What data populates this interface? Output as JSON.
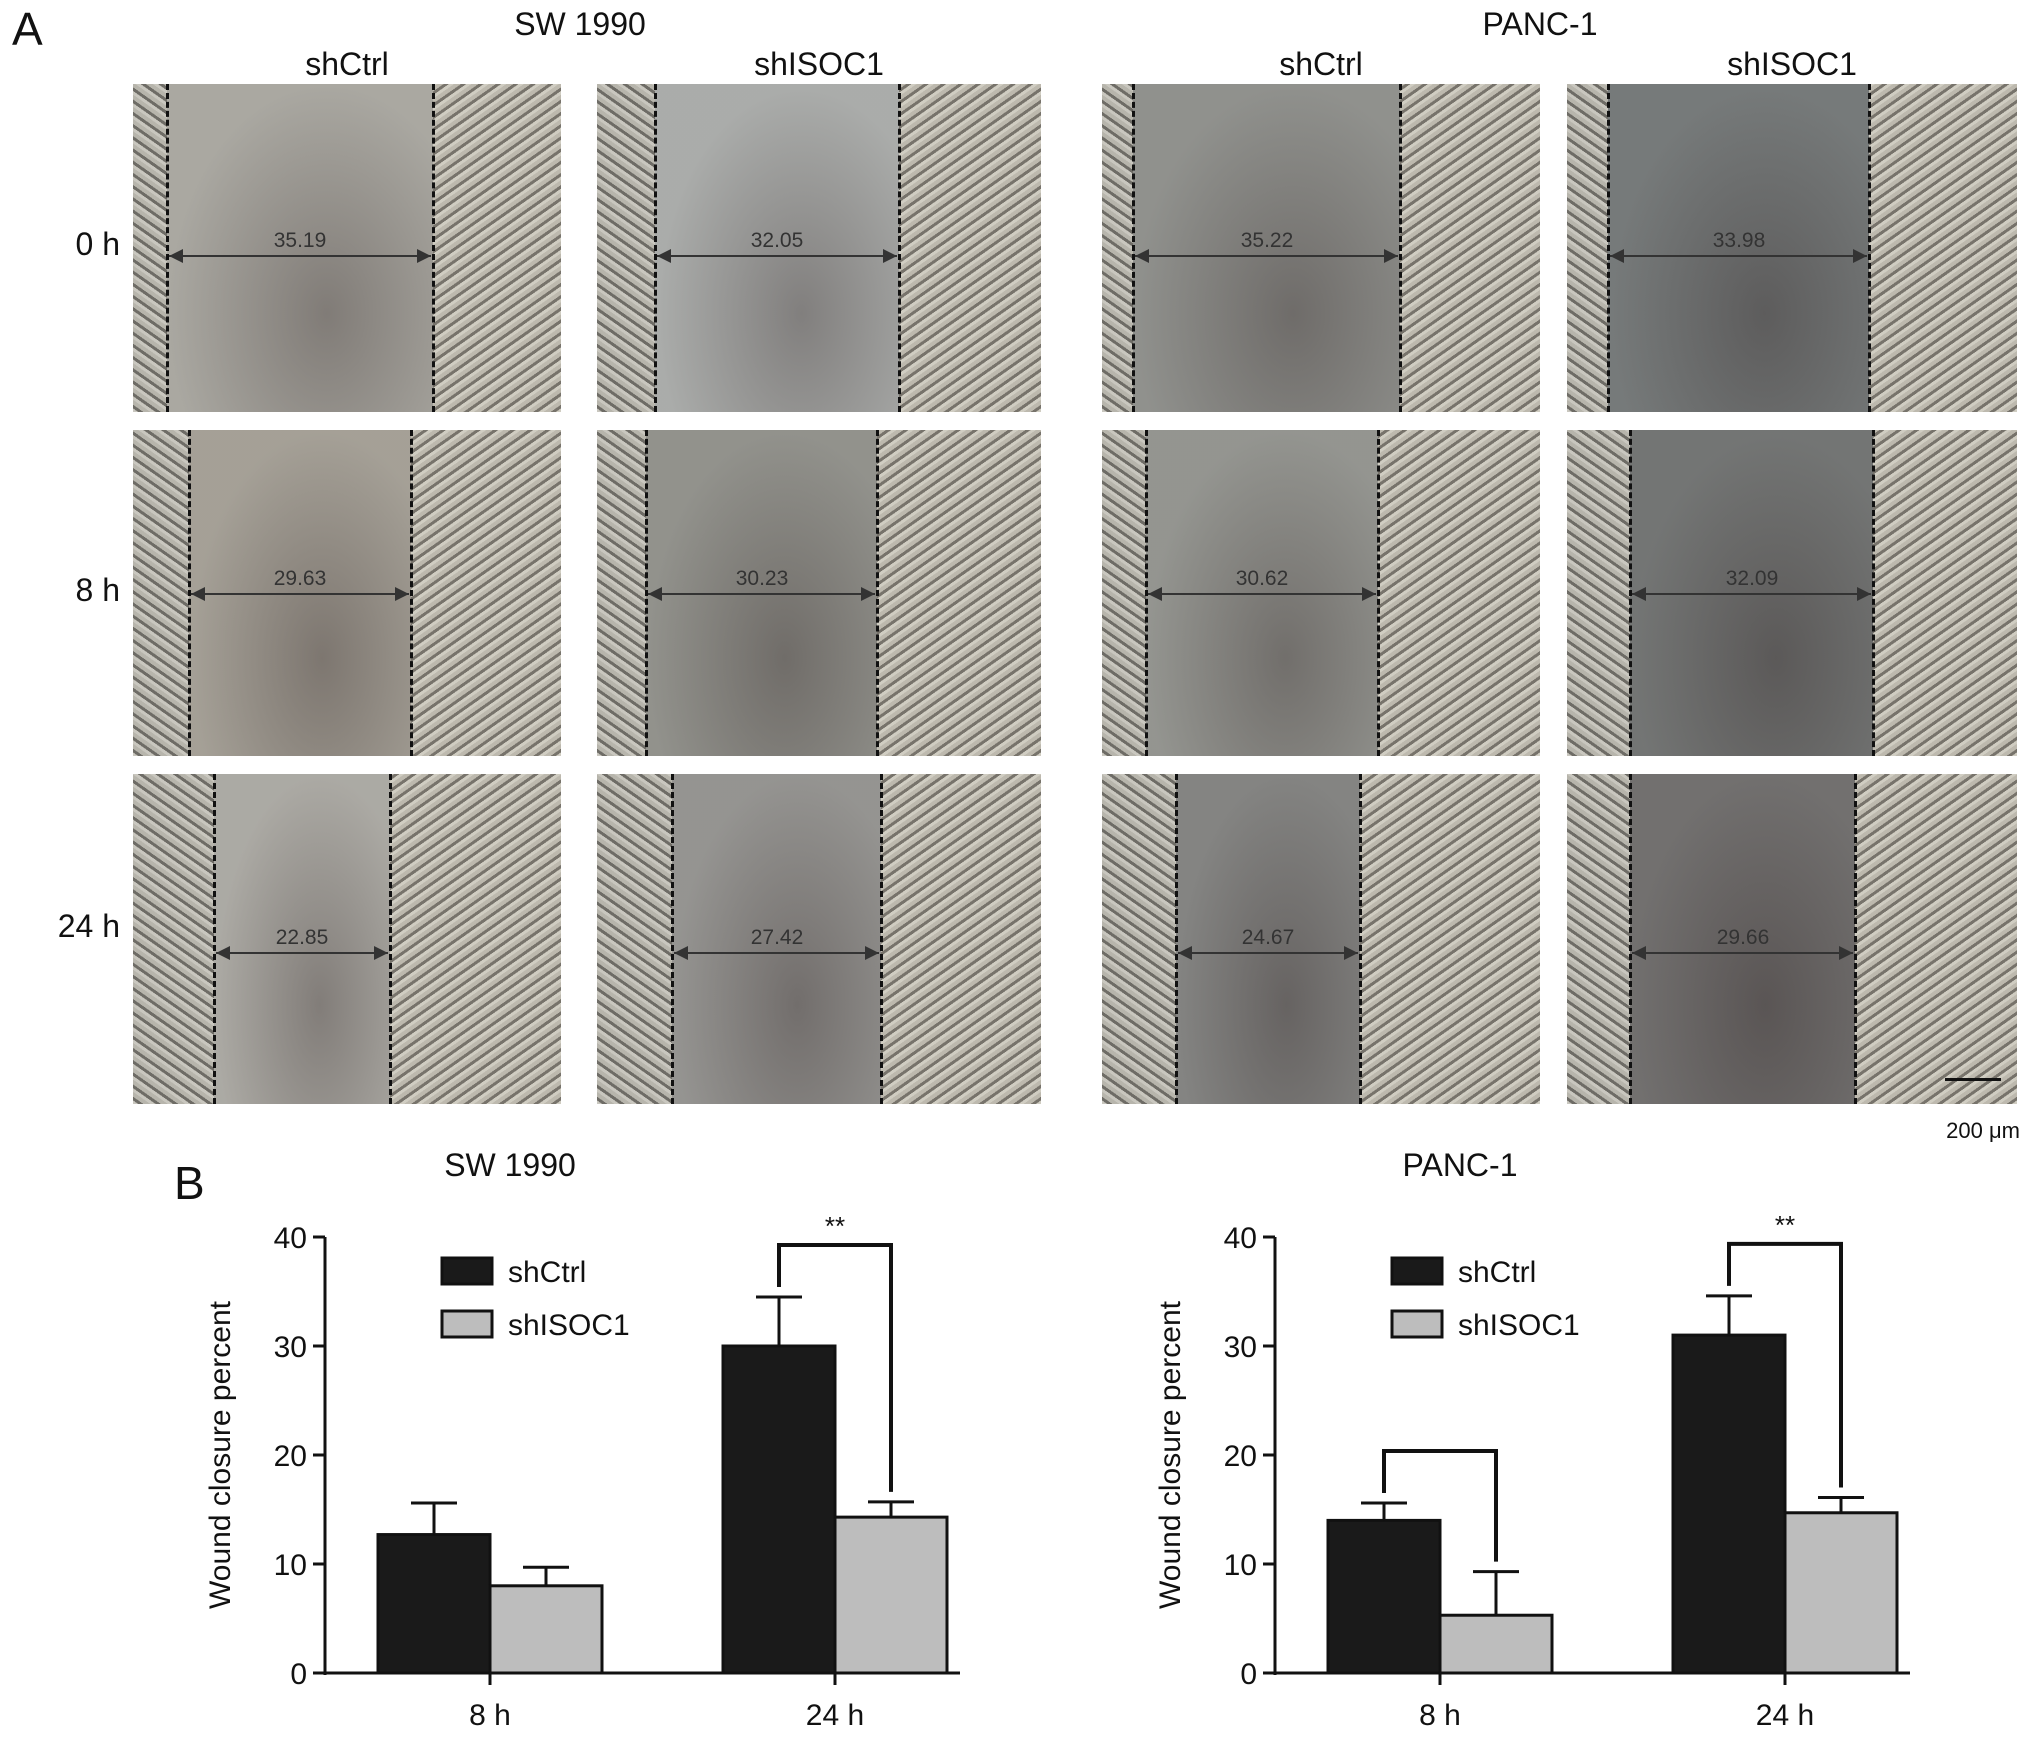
{
  "panel_a": {
    "letter": "A",
    "cell_lines": [
      {
        "name": "SW 1990",
        "groups": [
          "shCtrl",
          "shISOC1"
        ]
      },
      {
        "name": "PANC-1",
        "groups": [
          "shCtrl",
          "shISOC1"
        ]
      }
    ],
    "timepoints": [
      "0 h",
      "8 h",
      "24 h"
    ],
    "measurements": [
      [
        "35.19",
        "32.05",
        "35.22",
        "33.98"
      ],
      [
        "29.63",
        "30.23",
        "30.62",
        "32.09"
      ],
      [
        "22.85",
        "27.42",
        "24.67",
        "29.66"
      ]
    ],
    "scale_label": "200 μm"
  },
  "panel_b": {
    "letter": "B"
  },
  "colors": {
    "shCtrl": "#1a1a1a",
    "shISOC1": "#bdbdbd"
  },
  "chart_data": [
    {
      "type": "bar",
      "title": "SW 1990",
      "ylabel": "Wound closure percent",
      "xlabel": "",
      "categories": [
        "8 h",
        "24 h"
      ],
      "ylim": [
        0,
        40
      ],
      "yticks": [
        "0",
        "10",
        "20",
        "30",
        "40"
      ],
      "series": [
        {
          "name": "shCtrl",
          "values": [
            12.7,
            30.0
          ],
          "errors": [
            2.9,
            4.5
          ]
        },
        {
          "name": "shISOC1",
          "values": [
            8.0,
            14.3
          ],
          "errors": [
            1.7,
            1.4
          ]
        }
      ],
      "significance": [
        {
          "category": "24 h",
          "label": "**"
        }
      ],
      "legend": "top-left",
      "grid": false
    },
    {
      "type": "bar",
      "title": "PANC-1",
      "ylabel": "Wound closure percent",
      "xlabel": "",
      "categories": [
        "8 h",
        "24 h"
      ],
      "ylim": [
        0,
        40
      ],
      "yticks": [
        "0",
        "10",
        "20",
        "30",
        "40"
      ],
      "series": [
        {
          "name": "shCtrl",
          "values": [
            14.0,
            31.0
          ],
          "errors": [
            1.6,
            3.6
          ]
        },
        {
          "name": "shISOC1",
          "values": [
            5.3,
            14.7
          ],
          "errors": [
            4.0,
            1.4
          ]
        }
      ],
      "significance": [
        {
          "category": "8 h",
          "label": ""
        },
        {
          "category": "24 h",
          "label": "**"
        }
      ],
      "legend": "top-left",
      "grid": false
    }
  ]
}
